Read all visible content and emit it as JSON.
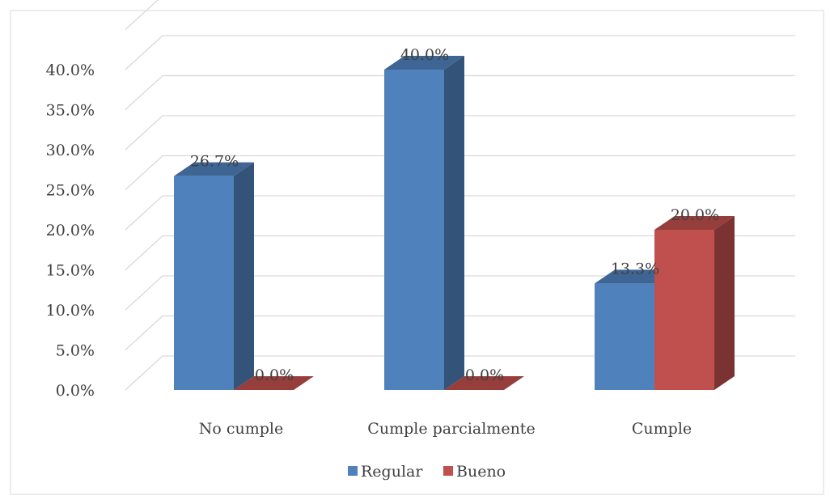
{
  "chart_data": {
    "type": "bar",
    "categories": [
      "No cumple",
      "Cumple parcialmente",
      "Cumple"
    ],
    "series": [
      {
        "name": "Regular",
        "values": [
          26.7,
          40.0,
          13.3
        ],
        "color": "#4F81BD"
      },
      {
        "name": "Bueno",
        "values": [
          0.0,
          0.0,
          20.0
        ],
        "color": "#C0504D"
      }
    ],
    "data_labels": [
      [
        "26.7%",
        "40.0%",
        "13.3%"
      ],
      [
        "0.0%",
        "0.0%",
        "20.0%"
      ]
    ],
    "y_ticks": [
      0,
      5,
      10,
      15,
      20,
      25,
      30,
      35,
      40
    ],
    "y_tick_labels": [
      "0.0%",
      "5.0%",
      "10.0%",
      "15.0%",
      "20.0%",
      "25.0%",
      "30.0%",
      "35.0%",
      "40.0%"
    ],
    "ylim": [
      0,
      40
    ],
    "title": "",
    "xlabel": "",
    "ylabel": "",
    "grid": true,
    "three_d": true,
    "legend_position": "bottom"
  }
}
